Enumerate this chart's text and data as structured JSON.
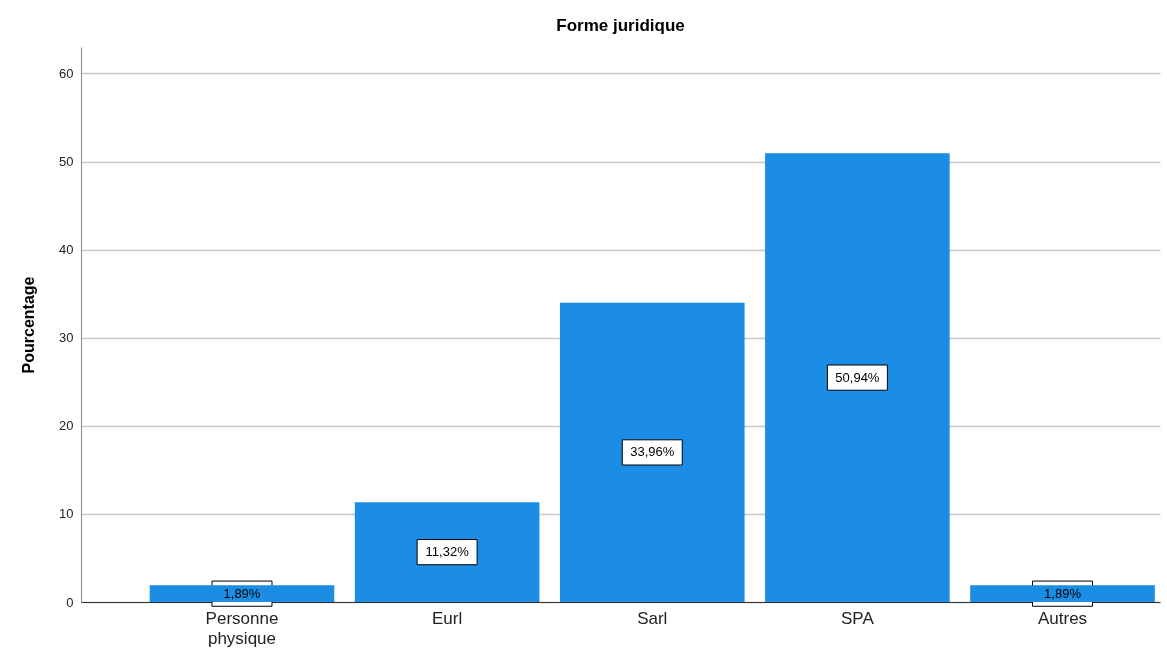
{
  "chart_data": {
    "type": "bar",
    "title": "Forme juridique",
    "ylabel": "Pourcentage",
    "categories": [
      "Personne physique",
      "Eurl",
      "Sarl",
      "SPA",
      "Autres"
    ],
    "values": [
      1.89,
      11.32,
      33.96,
      50.94,
      1.89
    ],
    "value_labels": [
      "1,89%",
      "11,32%",
      "33,96%",
      "50,94%",
      "1,89%"
    ],
    "color": "#1b8de4",
    "ylim": [
      0,
      63
    ],
    "yticks": [
      0,
      10,
      20,
      30,
      40,
      50,
      60
    ],
    "grid": "y"
  }
}
